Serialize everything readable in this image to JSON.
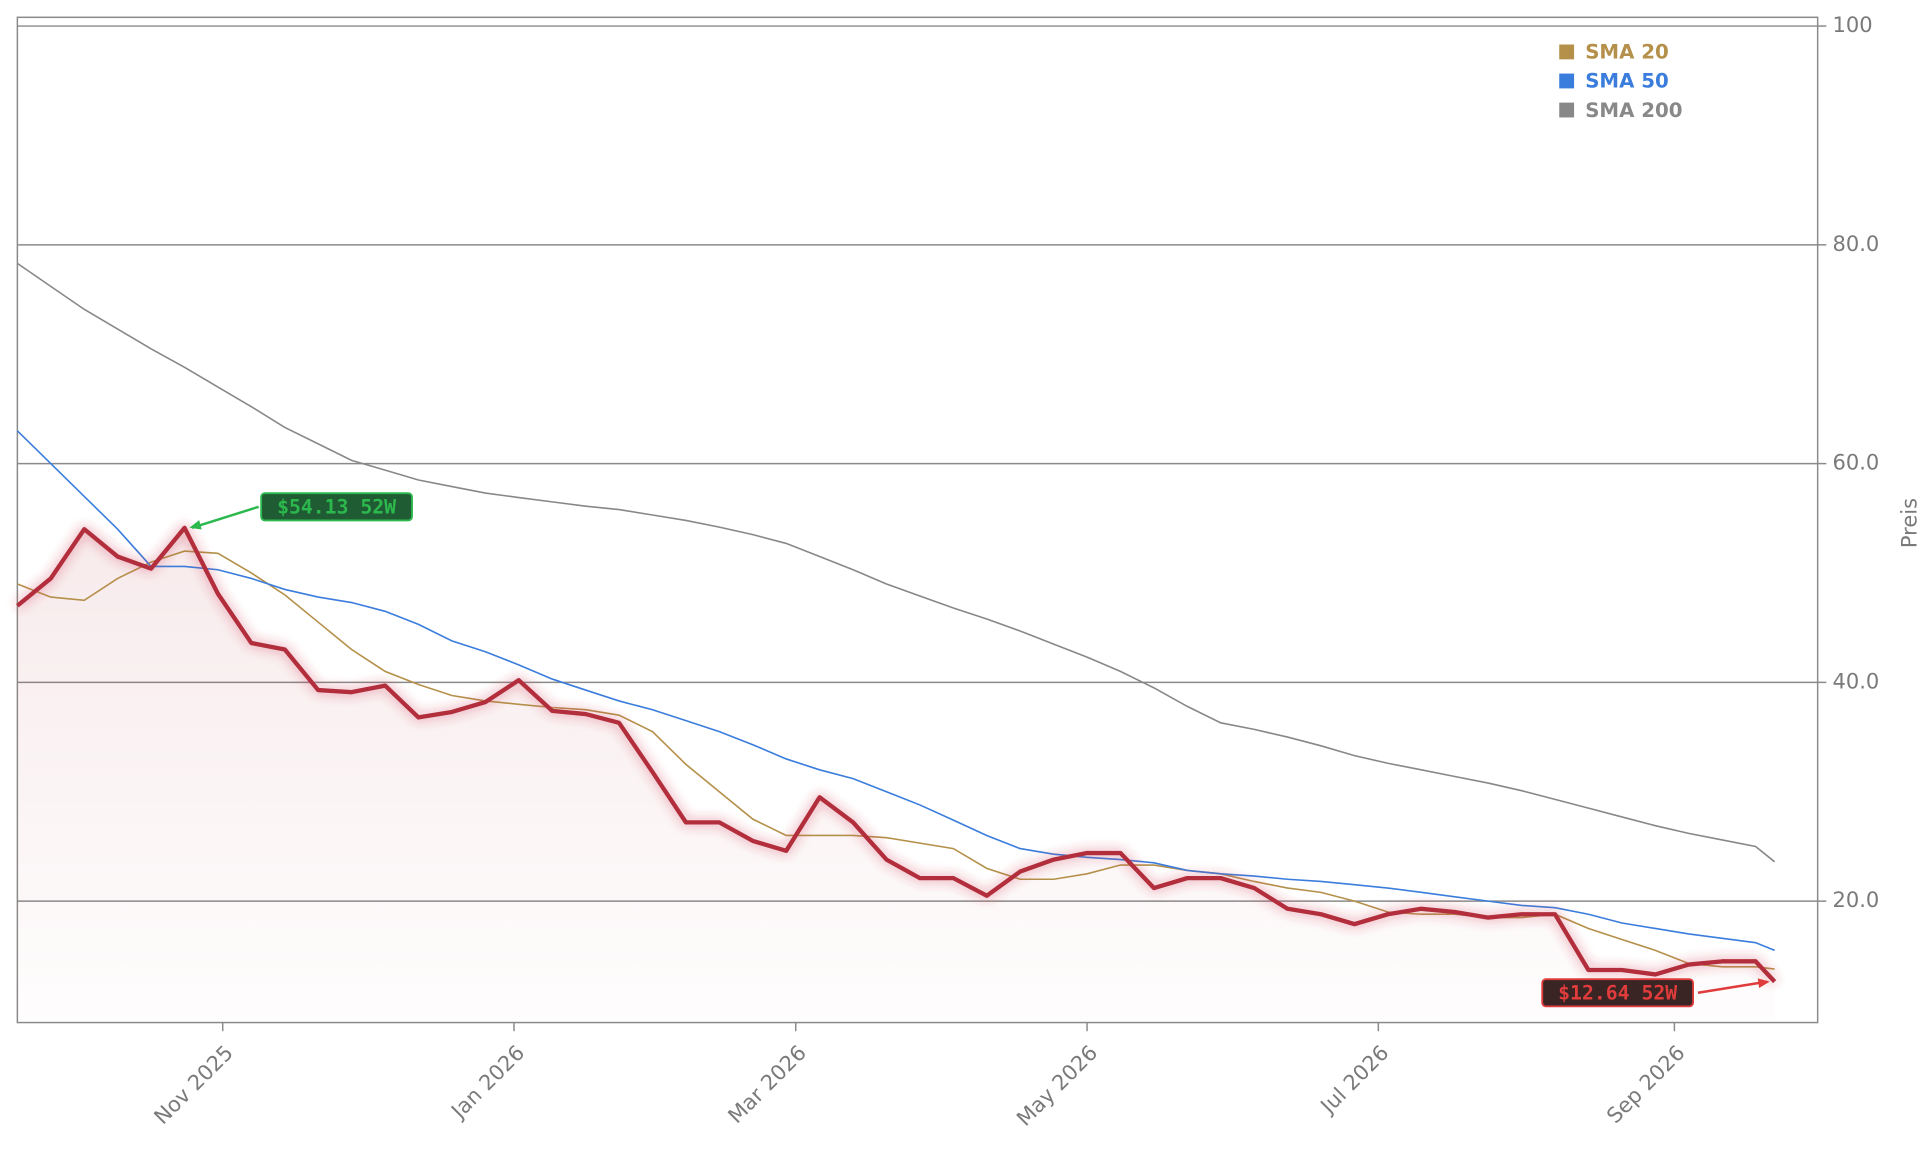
{
  "chart_data": {
    "type": "line",
    "y_label": "Preis",
    "x": [
      "2025-09-19",
      "2025-09-26",
      "2025-10-03",
      "2025-10-10",
      "2025-10-17",
      "2025-10-24",
      "2025-10-31",
      "2025-11-07",
      "2025-11-14",
      "2025-11-21",
      "2025-11-28",
      "2025-12-05",
      "2025-12-12",
      "2025-12-19",
      "2025-12-26",
      "2026-01-02",
      "2026-01-09",
      "2026-01-16",
      "2026-01-23",
      "2026-01-30",
      "2026-02-06",
      "2026-02-13",
      "2026-02-20",
      "2026-02-27",
      "2026-03-06",
      "2026-03-13",
      "2026-03-20",
      "2026-03-27",
      "2026-04-03",
      "2026-04-10",
      "2026-04-17",
      "2026-04-24",
      "2026-05-01",
      "2026-05-08",
      "2026-05-15",
      "2026-05-22",
      "2026-05-29",
      "2026-06-05",
      "2026-06-12",
      "2026-06-19",
      "2026-06-26",
      "2026-07-03",
      "2026-07-10",
      "2026-07-17",
      "2026-07-24",
      "2026-07-31",
      "2026-08-07",
      "2026-08-14",
      "2026-08-21",
      "2026-08-28",
      "2026-09-04",
      "2026-09-11",
      "2026-09-18",
      "2026-09-22"
    ],
    "values": [
      47.0,
      49.5,
      54.0,
      51.5,
      50.4,
      54.13,
      48.1,
      43.6,
      43.0,
      39.3,
      39.1,
      39.7,
      36.8,
      37.3,
      38.2,
      40.2,
      37.4,
      37.1,
      36.3,
      31.8,
      27.2,
      27.2,
      25.5,
      24.6,
      29.5,
      27.2,
      23.8,
      22.1,
      22.1,
      20.5,
      22.7,
      23.8,
      24.4,
      24.4,
      21.2,
      22.1,
      22.1,
      21.2,
      19.3,
      18.8,
      17.9,
      18.8,
      19.3,
      19.0,
      18.5,
      18.8,
      18.8,
      13.7,
      13.7,
      13.3,
      14.2,
      14.5,
      14.5,
      12.64
    ],
    "color": "#b22f3c",
    "series": [
      {
        "name": "SMA 20",
        "color": "#b5904a",
        "values": [
          49,
          47.8,
          47.5,
          49.5,
          51,
          52,
          51.8,
          50,
          48,
          45.5,
          43,
          41,
          39.8,
          38.8,
          38.3,
          38,
          37.7,
          37.5,
          37,
          35.5,
          32.5,
          30,
          27.5,
          26,
          26,
          26,
          25.8,
          25.3,
          24.8,
          23,
          22,
          22,
          22.5,
          23.3,
          23.3,
          22.8,
          22.5,
          21.8,
          21.2,
          20.8,
          20,
          19,
          18.8,
          18.8,
          18.5,
          18.5,
          18.8,
          17.5,
          16.5,
          15.5,
          14.3,
          14,
          14,
          13.8
        ]
      },
      {
        "name": "SMA 50",
        "color": "#3b7ddd",
        "values": [
          63,
          60,
          57,
          54,
          50.6,
          50.6,
          50.3,
          49.5,
          48.5,
          47.8,
          47.3,
          46.5,
          45.3,
          43.8,
          42.8,
          41.6,
          40.3,
          39.3,
          38.3,
          37.5,
          36.5,
          35.5,
          34.3,
          33,
          32,
          31.2,
          30,
          28.8,
          27.4,
          26,
          24.8,
          24.3,
          24,
          23.8,
          23.5,
          22.8,
          22.5,
          22.3,
          22,
          21.8,
          21.5,
          21.2,
          20.8,
          20.4,
          20,
          19.6,
          19.4,
          18.8,
          18,
          17.5,
          17,
          16.6,
          16.2,
          15.5
        ]
      },
      {
        "name": "SMA 200",
        "color": "#888888",
        "values": [
          78.3,
          76.2,
          74.1,
          72.3,
          70.5,
          68.8,
          67,
          65.2,
          63.3,
          61.8,
          60.3,
          59.4,
          58.5,
          57.9,
          57.3,
          56.9,
          56.5,
          56.1,
          55.8,
          55.3,
          54.8,
          54.2,
          53.5,
          52.7,
          51.5,
          50.3,
          49,
          47.9,
          46.8,
          45.8,
          44.7,
          43.5,
          42.3,
          41,
          39.5,
          37.8,
          36.3,
          35.7,
          35,
          34.2,
          33.3,
          32.6,
          32,
          31.4,
          30.8,
          30.1,
          29.3,
          28.5,
          27.7,
          26.9,
          26.2,
          25.6,
          25,
          23.6
        ]
      }
    ],
    "annotations": [
      {
        "text": "$54.13 52W",
        "x": "2025-10-24",
        "value": 54.13,
        "color": "#2db84d"
      },
      {
        "text": "$12.64 52W",
        "x": "2026-09-22",
        "value": 12.64,
        "color": "#e03c3c"
      }
    ],
    "xlim": [
      "2025-09-19",
      "2026-10-01"
    ],
    "xticks": [
      {
        "value": "2025-11-01",
        "label": "Nov 2025"
      },
      {
        "value": "2026-01-01",
        "label": "Jan 2026"
      },
      {
        "value": "2026-03-01",
        "label": "Mar 2026"
      },
      {
        "value": "2026-05-01",
        "label": "May 2026"
      },
      {
        "value": "2026-07-01",
        "label": "Jul 2026"
      },
      {
        "value": "2026-09-01",
        "label": "Sep 2026"
      }
    ],
    "ylim": [
      8.9,
      100.8
    ],
    "yticks": [
      {
        "value": 20,
        "label": "20.0"
      },
      {
        "value": 40,
        "label": "40.0"
      },
      {
        "value": 60,
        "label": "60.0"
      },
      {
        "value": 80,
        "label": "80.0"
      },
      100
    ],
    "grid": true,
    "legend": "upper right"
  }
}
